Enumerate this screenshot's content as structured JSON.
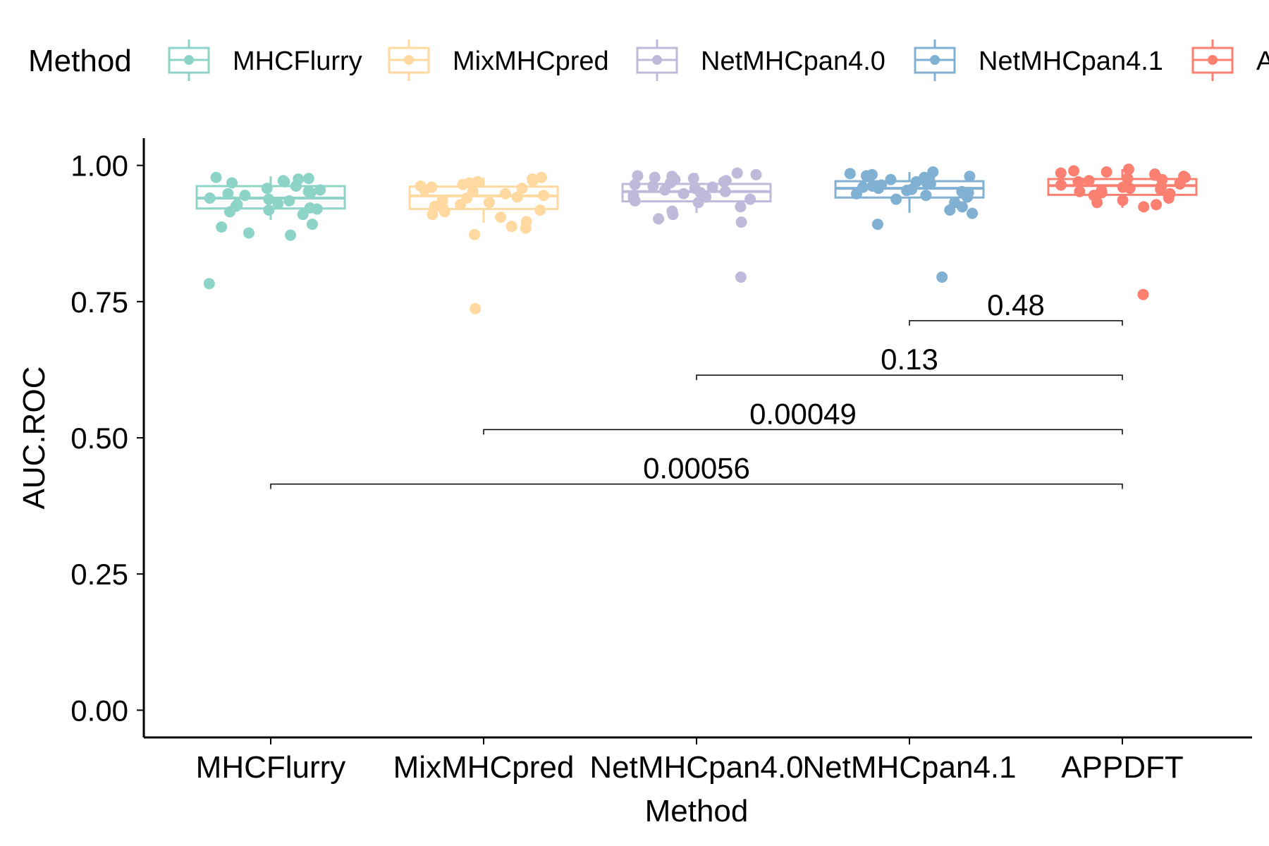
{
  "chart_data": {
    "type": "box",
    "xlabel": "Method",
    "ylabel": "AUC.ROC",
    "ylim": [
      -0.05,
      1.05
    ],
    "yticks": [
      "0.00",
      "0.25",
      "0.50",
      "0.75",
      "1.00"
    ],
    "ytick_values": [
      0,
      0.25,
      0.5,
      0.75,
      1.0
    ],
    "grid": false,
    "legend": {
      "title": "Method",
      "position": "top",
      "entries": [
        "MHCFlurry",
        "MixMHCpred",
        "NetMHCpan4.0",
        "NetMHCpan4.1",
        "APPDFT"
      ]
    },
    "categories": [
      "MHCFlurry",
      "MixMHCpred",
      "NetMHCpan4.0",
      "NetMHCpan4.1",
      "APPDFT"
    ],
    "colors": [
      "#8DD3C7",
      "#FFD9A0",
      "#BEBADA",
      "#80B1D3",
      "#FB8072"
    ],
    "series": [
      {
        "name": "MHCFlurry",
        "box": {
          "q1": 0.921,
          "median": 0.94,
          "q3": 0.962,
          "whisker_low": 0.9,
          "whisker_high": 0.98
        },
        "points": [
          0.978,
          0.976,
          0.975,
          0.972,
          0.97,
          0.968,
          0.962,
          0.958,
          0.955,
          0.952,
          0.95,
          0.948,
          0.945,
          0.94,
          0.938,
          0.935,
          0.93,
          0.928,
          0.925,
          0.922,
          0.92,
          0.918,
          0.915,
          0.91,
          0.892,
          0.887,
          0.876,
          0.872,
          0.783
        ]
      },
      {
        "name": "MixMHCpred",
        "box": {
          "q1": 0.92,
          "median": 0.944,
          "q3": 0.961,
          "whisker_low": 0.895,
          "whisker_high": 0.978
        },
        "points": [
          0.978,
          0.975,
          0.972,
          0.97,
          0.968,
          0.965,
          0.962,
          0.96,
          0.958,
          0.955,
          0.952,
          0.948,
          0.945,
          0.942,
          0.94,
          0.936,
          0.932,
          0.928,
          0.925,
          0.922,
          0.918,
          0.915,
          0.91,
          0.905,
          0.897,
          0.888,
          0.885,
          0.873,
          0.737
        ]
      },
      {
        "name": "NetMHCpan4.0",
        "box": {
          "q1": 0.934,
          "median": 0.952,
          "q3": 0.966,
          "whisker_low": 0.913,
          "whisker_high": 0.986
        },
        "points": [
          0.986,
          0.983,
          0.981,
          0.98,
          0.978,
          0.976,
          0.974,
          0.972,
          0.97,
          0.968,
          0.965,
          0.962,
          0.96,
          0.958,
          0.955,
          0.952,
          0.95,
          0.948,
          0.945,
          0.942,
          0.94,
          0.938,
          0.935,
          0.932,
          0.924,
          0.916,
          0.91,
          0.902,
          0.896,
          0.795
        ]
      },
      {
        "name": "NetMHCpan4.1",
        "box": {
          "q1": 0.941,
          "median": 0.958,
          "q3": 0.971,
          "whisker_low": 0.913,
          "whisker_high": 0.988
        },
        "points": [
          0.988,
          0.985,
          0.983,
          0.981,
          0.98,
          0.978,
          0.976,
          0.974,
          0.972,
          0.97,
          0.968,
          0.966,
          0.964,
          0.962,
          0.96,
          0.958,
          0.956,
          0.954,
          0.952,
          0.95,
          0.948,
          0.945,
          0.942,
          0.938,
          0.932,
          0.924,
          0.918,
          0.912,
          0.892,
          0.795
        ]
      },
      {
        "name": "APPDFT",
        "box": {
          "q1": 0.946,
          "median": 0.963,
          "q3": 0.975,
          "whisker_low": 0.922,
          "whisker_high": 0.993
        },
        "points": [
          0.993,
          0.99,
          0.988,
          0.986,
          0.984,
          0.982,
          0.98,
          0.978,
          0.976,
          0.974,
          0.972,
          0.97,
          0.968,
          0.966,
          0.964,
          0.962,
          0.96,
          0.958,
          0.956,
          0.954,
          0.952,
          0.95,
          0.948,
          0.945,
          0.94,
          0.936,
          0.932,
          0.928,
          0.924,
          0.763
        ]
      }
    ],
    "comparisons": [
      {
        "from": "NetMHCpan4.1",
        "to": "APPDFT",
        "label": "0.48",
        "y": 0.715
      },
      {
        "from": "NetMHCpan4.0",
        "to": "APPDFT",
        "label": "0.13",
        "y": 0.615
      },
      {
        "from": "MixMHCpred",
        "to": "APPDFT",
        "label": "0.00049",
        "y": 0.515
      },
      {
        "from": "MHCFlurry",
        "to": "APPDFT",
        "label": "0.00056",
        "y": 0.415
      }
    ]
  }
}
